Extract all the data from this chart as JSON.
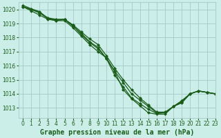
{
  "bg_color": "#cceee8",
  "grid_color": "#aacccc",
  "line_color": "#1a5c1a",
  "title": "Graphe pression niveau de la mer (hPa)",
  "xlim": [
    -0.5,
    23
  ],
  "ylim": [
    1012.3,
    1020.5
  ],
  "xticks": [
    0,
    1,
    2,
    3,
    4,
    5,
    6,
    7,
    8,
    9,
    10,
    11,
    12,
    13,
    14,
    15,
    16,
    17,
    18,
    19,
    20,
    21,
    22,
    23
  ],
  "yticks": [
    1013,
    1014,
    1015,
    1016,
    1017,
    1018,
    1019,
    1020
  ],
  "series": [
    [
      1020.2,
      1020.0,
      1019.8,
      1019.4,
      1019.3,
      1019.3,
      1018.8,
      1018.3,
      1017.7,
      1017.3,
      1016.5,
      1015.3,
      1014.5,
      1013.7,
      1013.3,
      1012.9,
      1012.6,
      1012.65,
      1013.1,
      1013.4,
      1014.0,
      1014.2,
      1014.1,
      1014.0
    ],
    [
      1020.2,
      1019.9,
      1019.6,
      1019.3,
      1019.2,
      1019.3,
      1018.9,
      1018.4,
      1017.9,
      1017.5,
      1016.7,
      1015.8,
      1015.0,
      1014.3,
      1013.7,
      1013.2,
      1012.7,
      1012.7,
      1013.1,
      1013.5,
      1014.0,
      1014.2,
      1014.1,
      1014.0
    ],
    [
      1020.2,
      1020.0,
      1019.75,
      1019.35,
      1019.25,
      1019.3,
      1018.85,
      1018.2,
      1017.65,
      1017.2,
      1016.5,
      1015.6,
      1014.8,
      1014.0,
      1013.55,
      1013.1,
      1012.65,
      1012.65,
      1013.1,
      1013.5,
      1014.0,
      1014.2,
      1014.1,
      1014.0
    ],
    [
      1020.3,
      1020.05,
      1019.85,
      1019.35,
      1019.2,
      1019.2,
      1018.7,
      1018.1,
      1017.5,
      1017.0,
      1016.55,
      1015.55,
      1014.3,
      1013.65,
      1013.15,
      1012.65,
      1012.55,
      1012.55,
      1013.1,
      1013.35,
      1014.0,
      1014.2,
      1014.1,
      1014.0
    ]
  ],
  "tick_fontsize": 5.5,
  "title_fontsize": 7.0,
  "marker": "D",
  "markersize": 2.0,
  "linewidth": 0.9
}
